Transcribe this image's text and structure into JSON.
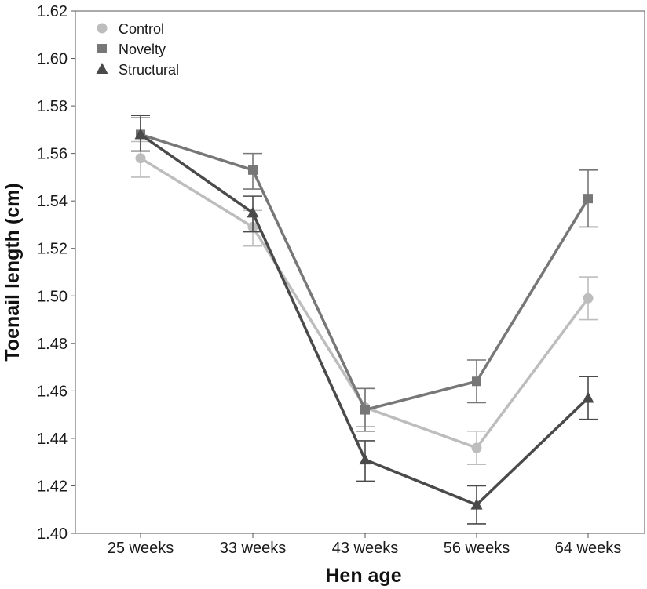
{
  "chart_data": {
    "type": "line",
    "title": "",
    "xlabel": "Hen age",
    "ylabel": "Toenail length (cm)",
    "categories": [
      "25 weeks",
      "33 weeks",
      "43 weeks",
      "56 weeks",
      "64 weeks"
    ],
    "ylim": [
      1.4,
      1.62
    ],
    "yticks": [
      "1.40",
      "1.42",
      "1.44",
      "1.46",
      "1.48",
      "1.50",
      "1.52",
      "1.54",
      "1.56",
      "1.58",
      "1.60",
      "1.62"
    ],
    "grid": false,
    "legend_position": "top-left",
    "series": [
      {
        "name": "Control",
        "marker": "circle",
        "color": "#bdbdbd",
        "values": [
          1.558,
          1.529,
          1.453,
          1.436,
          1.499
        ],
        "err_low": [
          1.55,
          1.521,
          1.445,
          1.429,
          1.49
        ],
        "err_high": [
          1.565,
          1.536,
          1.461,
          1.443,
          1.508
        ]
      },
      {
        "name": "Novelty",
        "marker": "square",
        "color": "#777777",
        "values": [
          1.568,
          1.553,
          1.452,
          1.464,
          1.541
        ],
        "err_low": [
          1.561,
          1.545,
          1.443,
          1.455,
          1.529
        ],
        "err_high": [
          1.575,
          1.56,
          1.461,
          1.473,
          1.553
        ]
      },
      {
        "name": "Structural",
        "marker": "triangle",
        "color": "#4a4a4a",
        "values": [
          1.568,
          1.535,
          1.431,
          1.412,
          1.457
        ],
        "err_low": [
          1.561,
          1.527,
          1.422,
          1.404,
          1.448
        ],
        "err_high": [
          1.576,
          1.542,
          1.439,
          1.42,
          1.466
        ]
      }
    ]
  }
}
